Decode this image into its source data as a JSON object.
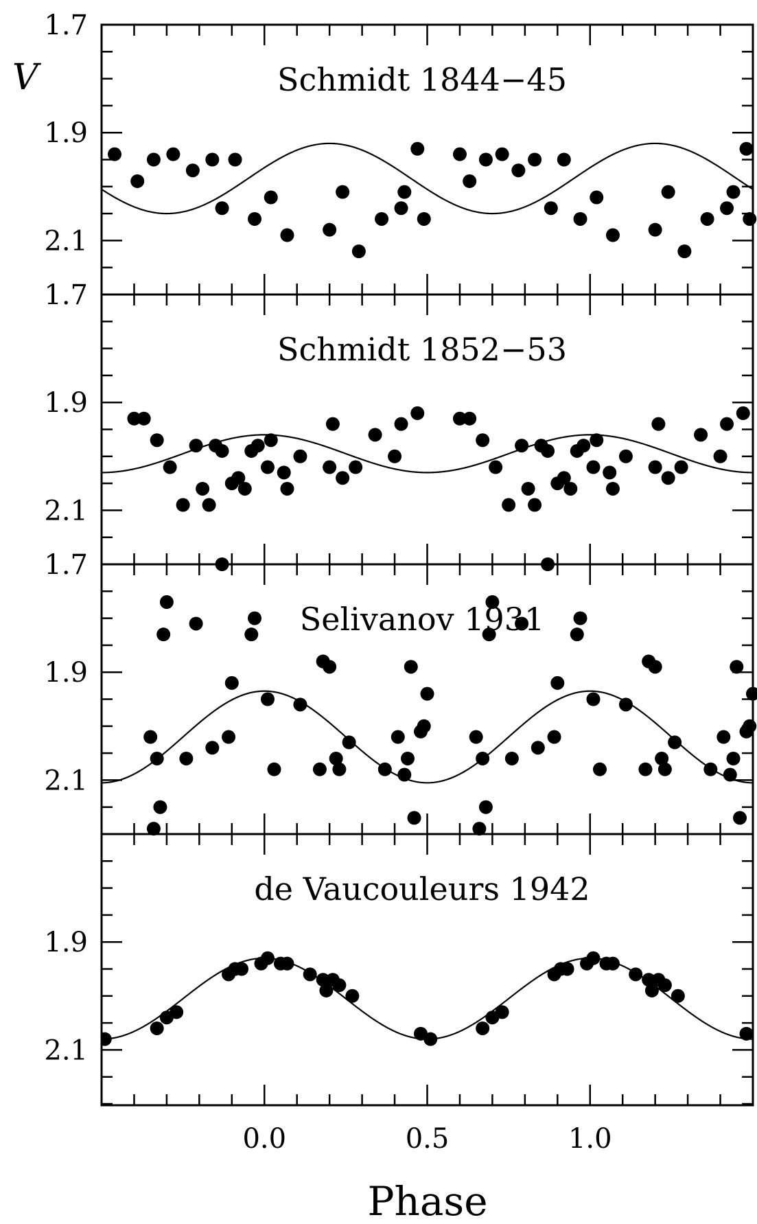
{
  "chart_data": [
    {
      "type": "scatter",
      "title": "Schmidt 1844−45",
      "ylabel": "V",
      "xlim": [
        -0.5,
        1.5
      ],
      "ylim": [
        1.7,
        2.2
      ],
      "yticks": [
        "1.7",
        "1.9",
        "2.1"
      ],
      "series": [
        {
          "kind": "points",
          "x": [
            -0.46,
            -0.39,
            -0.34,
            -0.28,
            -0.22,
            -0.16,
            -0.13,
            -0.09,
            -0.03,
            0.02,
            0.07,
            0.2,
            0.24,
            0.29,
            0.36,
            0.42,
            0.43,
            0.47,
            0.49,
            0.6,
            0.63,
            0.68,
            0.73,
            0.78,
            0.83,
            0.88,
            0.92,
            0.97,
            1.02,
            1.07,
            1.2,
            1.24,
            1.29,
            1.36,
            1.42,
            1.44,
            1.48,
            1.49
          ],
          "y": [
            1.94,
            1.99,
            1.95,
            1.94,
            1.97,
            1.95,
            2.04,
            1.95,
            2.06,
            2.02,
            2.09,
            2.08,
            2.01,
            2.12,
            2.06,
            2.04,
            2.01,
            1.93,
            2.06,
            1.94,
            1.99,
            1.95,
            1.94,
            1.97,
            1.95,
            2.04,
            1.95,
            2.06,
            2.02,
            2.09,
            2.08,
            2.01,
            2.12,
            2.06,
            2.04,
            2.01,
            1.93,
            2.06
          ]
        },
        {
          "kind": "model",
          "mean": 1.985,
          "amplitude": 0.065,
          "max_phase": 0.2
        }
      ]
    },
    {
      "type": "scatter",
      "title": "Schmidt 1852−53",
      "ylabel": "V",
      "xlim": [
        -0.5,
        1.5
      ],
      "ylim": [
        1.7,
        2.2
      ],
      "yticks": [
        "1.7",
        "1.9",
        "2.1"
      ],
      "series": [
        {
          "kind": "points",
          "x": [
            -0.4,
            -0.37,
            -0.33,
            -0.29,
            -0.25,
            -0.21,
            -0.19,
            -0.17,
            -0.15,
            -0.13,
            -0.1,
            -0.08,
            -0.06,
            -0.04,
            -0.02,
            0.01,
            0.02,
            0.06,
            0.07,
            0.11,
            0.2,
            0.21,
            0.24,
            0.28,
            0.34,
            0.4,
            0.42,
            0.47,
            0.6,
            0.63,
            0.67,
            0.71,
            0.75,
            0.79,
            0.81,
            0.83,
            0.85,
            0.87,
            0.9,
            0.92,
            0.94,
            0.96,
            0.98,
            1.01,
            1.02,
            1.06,
            1.07,
            1.11,
            1.2,
            1.21,
            1.24,
            1.28,
            1.34,
            1.4,
            1.42,
            1.47
          ],
          "y": [
            1.93,
            1.93,
            1.97,
            2.02,
            2.09,
            1.98,
            2.06,
            2.09,
            1.98,
            1.99,
            2.05,
            2.04,
            2.06,
            1.99,
            1.98,
            2.02,
            1.97,
            2.03,
            2.06,
            2.0,
            2.02,
            1.94,
            2.04,
            2.02,
            1.96,
            2.0,
            1.94,
            1.92,
            1.93,
            1.93,
            1.97,
            2.02,
            2.09,
            1.98,
            2.06,
            2.09,
            1.98,
            1.99,
            2.05,
            2.04,
            2.06,
            1.99,
            1.98,
            2.02,
            1.97,
            2.03,
            2.06,
            2.0,
            2.02,
            1.94,
            2.04,
            2.02,
            1.96,
            2.0,
            1.94,
            1.92
          ]
        },
        {
          "kind": "model",
          "mean": 1.995,
          "amplitude": 0.035,
          "max_phase": 0.0
        }
      ]
    },
    {
      "type": "scatter",
      "title": "Selivanov 1931",
      "ylabel": "V",
      "xlim": [
        -0.5,
        1.5
      ],
      "ylim": [
        1.7,
        2.2
      ],
      "yticks": [
        "1.7",
        "1.9",
        "2.1"
      ],
      "series": [
        {
          "kind": "points",
          "x": [
            -0.35,
            -0.34,
            -0.33,
            -0.32,
            -0.31,
            -0.3,
            -0.24,
            -0.21,
            -0.16,
            -0.13,
            -0.11,
            -0.1,
            -0.04,
            -0.03,
            0.01,
            0.03,
            0.11,
            0.17,
            0.18,
            0.2,
            0.22,
            0.23,
            0.26,
            0.37,
            0.41,
            0.43,
            0.44,
            0.45,
            0.46,
            0.48,
            0.49,
            0.5,
            0.65,
            0.66,
            0.67,
            0.68,
            0.69,
            0.7,
            0.76,
            0.79,
            0.84,
            0.87,
            0.89,
            0.9,
            0.96,
            0.97,
            1.01,
            1.03,
            1.11,
            1.17,
            1.18,
            1.2,
            1.22,
            1.23,
            1.26,
            1.37,
            1.41,
            1.43,
            1.44,
            1.45,
            1.46,
            1.48,
            1.49,
            1.5
          ],
          "y": [
            2.02,
            2.19,
            2.06,
            2.15,
            1.83,
            1.77,
            2.06,
            1.81,
            2.04,
            1.7,
            2.02,
            1.92,
            1.83,
            1.8,
            1.95,
            2.08,
            1.96,
            2.08,
            1.88,
            1.89,
            2.06,
            2.08,
            2.03,
            2.08,
            2.02,
            2.09,
            2.06,
            1.89,
            2.17,
            2.01,
            2.0,
            1.94,
            2.02,
            2.19,
            2.06,
            2.15,
            1.83,
            1.77,
            2.06,
            1.81,
            2.04,
            1.7,
            2.02,
            1.92,
            1.83,
            1.8,
            1.95,
            2.08,
            1.96,
            2.08,
            1.88,
            1.89,
            2.06,
            2.08,
            2.03,
            2.08,
            2.02,
            2.09,
            2.06,
            1.89,
            2.17,
            2.01,
            2.0,
            1.94
          ]
        },
        {
          "kind": "model",
          "mean": 2.02,
          "amplitude": 0.085,
          "max_phase": 0.0
        }
      ]
    },
    {
      "type": "scatter",
      "title": "de Vaucouleurs 1942",
      "ylabel": "V",
      "xlim": [
        -0.5,
        1.5
      ],
      "ylim": [
        1.7,
        2.2
      ],
      "yticks": [
        "1.9",
        "2.1"
      ],
      "series": [
        {
          "kind": "points",
          "x": [
            -0.49,
            -0.33,
            -0.3,
            -0.27,
            -0.11,
            -0.09,
            -0.07,
            -0.01,
            0.01,
            0.05,
            0.07,
            0.14,
            0.18,
            0.19,
            0.21,
            0.23,
            0.27,
            0.48,
            0.51,
            0.67,
            0.7,
            0.73,
            0.89,
            0.91,
            0.93,
            0.99,
            1.01,
            1.05,
            1.07,
            1.14,
            1.18,
            1.19,
            1.21,
            1.23,
            1.27,
            1.48
          ],
          "y": [
            2.08,
            2.06,
            2.04,
            2.03,
            1.96,
            1.95,
            1.95,
            1.94,
            1.93,
            1.94,
            1.94,
            1.96,
            1.97,
            1.99,
            1.97,
            1.98,
            2.0,
            2.07,
            2.08,
            2.06,
            2.04,
            2.03,
            1.96,
            1.95,
            1.95,
            1.94,
            1.93,
            1.94,
            1.94,
            1.96,
            1.97,
            1.99,
            1.97,
            1.98,
            2.0,
            2.07
          ]
        },
        {
          "kind": "model",
          "mean": 2.005,
          "amplitude": 0.075,
          "max_phase": 0.0
        }
      ]
    }
  ],
  "x_axis": {
    "xlabel": "Phase",
    "xticks": [
      "0.0",
      "0.5",
      "1.0"
    ]
  }
}
